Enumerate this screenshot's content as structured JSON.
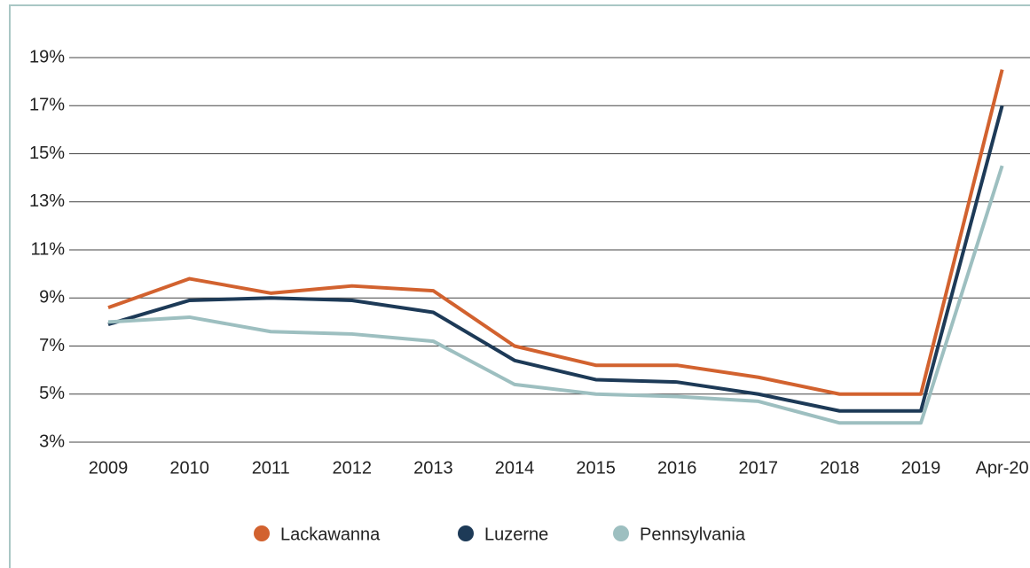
{
  "chart_data": {
    "type": "line",
    "categories": [
      "2009",
      "2010",
      "2011",
      "2012",
      "2013",
      "2014",
      "2015",
      "2016",
      "2017",
      "2018",
      "2019",
      "Apr-20"
    ],
    "series": [
      {
        "name": "Lackawanna",
        "color": "#d2622f",
        "values": [
          8.6,
          9.8,
          9.2,
          9.5,
          9.3,
          7.0,
          6.2,
          6.2,
          5.7,
          5.0,
          5.0,
          18.5
        ]
      },
      {
        "name": "Luzerne",
        "color": "#1d3a57",
        "values": [
          7.9,
          8.9,
          9.0,
          8.9,
          8.4,
          6.4,
          5.6,
          5.5,
          5.0,
          4.3,
          4.3,
          17.0
        ]
      },
      {
        "name": "Pennsylvania",
        "color": "#9dbfc0",
        "values": [
          8.0,
          8.2,
          7.6,
          7.5,
          7.2,
          5.4,
          5.0,
          4.9,
          4.7,
          3.8,
          3.8,
          14.5
        ]
      }
    ],
    "ylim": [
      3,
      19
    ],
    "yticks": [
      {
        "value": 3,
        "label": "3%"
      },
      {
        "value": 5,
        "label": "5%"
      },
      {
        "value": 7,
        "label": "7%"
      },
      {
        "value": 9,
        "label": "9%"
      },
      {
        "value": 11,
        "label": "11%"
      },
      {
        "value": 13,
        "label": "13%"
      },
      {
        "value": 15,
        "label": "15%"
      },
      {
        "value": 17,
        "label": "17%"
      },
      {
        "value": 19,
        "label": "19%"
      }
    ],
    "grid": true,
    "legend": "bottom"
  }
}
